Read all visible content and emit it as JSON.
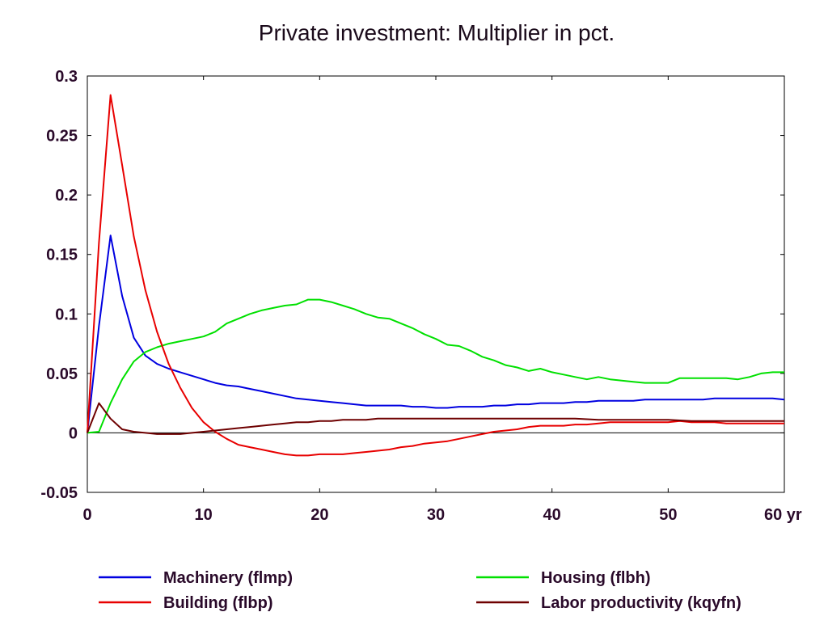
{
  "chart_data": {
    "type": "line",
    "title": "Private investment: Multiplier in pct.",
    "xlabel": "",
    "ylabel": "",
    "x_unit": "yr",
    "xlim": [
      0,
      60
    ],
    "ylim": [
      -0.05,
      0.3
    ],
    "x_ticks": [
      0,
      10,
      20,
      30,
      40,
      50,
      60
    ],
    "x_tick_labels": [
      "0",
      "10",
      "20",
      "30",
      "40",
      "50",
      "60 yr"
    ],
    "y_ticks": [
      -0.05,
      0,
      0.05,
      0.1,
      0.15,
      0.2,
      0.25,
      0.3
    ],
    "y_tick_labels": [
      "-0.05",
      "0",
      "0.05",
      "0.1",
      "0.15",
      "0.2",
      "0.25",
      "0.3"
    ],
    "grid": false,
    "zero_line": true,
    "legend_position": "bottom",
    "series": [
      {
        "name": "Machinery (flmp)",
        "color": "#0000e0",
        "points": [
          [
            0,
            0
          ],
          [
            1,
            0.09
          ],
          [
            2,
            0.166
          ],
          [
            3,
            0.115
          ],
          [
            4,
            0.08
          ],
          [
            5,
            0.065
          ],
          [
            6,
            0.058
          ],
          [
            7,
            0.054
          ],
          [
            8,
            0.051
          ],
          [
            9,
            0.048
          ],
          [
            10,
            0.045
          ],
          [
            11,
            0.042
          ],
          [
            12,
            0.04
          ],
          [
            13,
            0.039
          ],
          [
            14,
            0.037
          ],
          [
            15,
            0.035
          ],
          [
            16,
            0.033
          ],
          [
            17,
            0.031
          ],
          [
            18,
            0.029
          ],
          [
            19,
            0.028
          ],
          [
            20,
            0.027
          ],
          [
            21,
            0.026
          ],
          [
            22,
            0.025
          ],
          [
            23,
            0.024
          ],
          [
            24,
            0.023
          ],
          [
            25,
            0.023
          ],
          [
            26,
            0.023
          ],
          [
            27,
            0.023
          ],
          [
            28,
            0.022
          ],
          [
            29,
            0.022
          ],
          [
            30,
            0.021
          ],
          [
            31,
            0.021
          ],
          [
            32,
            0.022
          ],
          [
            33,
            0.022
          ],
          [
            34,
            0.022
          ],
          [
            35,
            0.023
          ],
          [
            36,
            0.023
          ],
          [
            37,
            0.024
          ],
          [
            38,
            0.024
          ],
          [
            39,
            0.025
          ],
          [
            40,
            0.025
          ],
          [
            41,
            0.025
          ],
          [
            42,
            0.026
          ],
          [
            43,
            0.026
          ],
          [
            44,
            0.027
          ],
          [
            45,
            0.027
          ],
          [
            46,
            0.027
          ],
          [
            47,
            0.027
          ],
          [
            48,
            0.028
          ],
          [
            49,
            0.028
          ],
          [
            50,
            0.028
          ],
          [
            51,
            0.028
          ],
          [
            52,
            0.028
          ],
          [
            53,
            0.028
          ],
          [
            54,
            0.029
          ],
          [
            55,
            0.029
          ],
          [
            56,
            0.029
          ],
          [
            57,
            0.029
          ],
          [
            58,
            0.029
          ],
          [
            59,
            0.029
          ],
          [
            60,
            0.028
          ]
        ]
      },
      {
        "name": "Housing (flbh)",
        "color": "#00e000",
        "points": [
          [
            0,
            0
          ],
          [
            1,
            0.001
          ],
          [
            2,
            0.025
          ],
          [
            3,
            0.045
          ],
          [
            4,
            0.06
          ],
          [
            5,
            0.068
          ],
          [
            6,
            0.072
          ],
          [
            7,
            0.075
          ],
          [
            8,
            0.077
          ],
          [
            9,
            0.079
          ],
          [
            10,
            0.081
          ],
          [
            11,
            0.085
          ],
          [
            12,
            0.092
          ],
          [
            13,
            0.096
          ],
          [
            14,
            0.1
          ],
          [
            15,
            0.103
          ],
          [
            16,
            0.105
          ],
          [
            17,
            0.107
          ],
          [
            18,
            0.108
          ],
          [
            19,
            0.112
          ],
          [
            20,
            0.112
          ],
          [
            21,
            0.11
          ],
          [
            22,
            0.107
          ],
          [
            23,
            0.104
          ],
          [
            24,
            0.1
          ],
          [
            25,
            0.097
          ],
          [
            26,
            0.096
          ],
          [
            27,
            0.092
          ],
          [
            28,
            0.088
          ],
          [
            29,
            0.083
          ],
          [
            30,
            0.079
          ],
          [
            31,
            0.074
          ],
          [
            32,
            0.073
          ],
          [
            33,
            0.069
          ],
          [
            34,
            0.064
          ],
          [
            35,
            0.061
          ],
          [
            36,
            0.057
          ],
          [
            37,
            0.055
          ],
          [
            38,
            0.052
          ],
          [
            39,
            0.054
          ],
          [
            40,
            0.051
          ],
          [
            41,
            0.049
          ],
          [
            42,
            0.047
          ],
          [
            43,
            0.045
          ],
          [
            44,
            0.047
          ],
          [
            45,
            0.045
          ],
          [
            46,
            0.044
          ],
          [
            47,
            0.043
          ],
          [
            48,
            0.042
          ],
          [
            49,
            0.042
          ],
          [
            50,
            0.042
          ],
          [
            51,
            0.046
          ],
          [
            52,
            0.046
          ],
          [
            53,
            0.046
          ],
          [
            54,
            0.046
          ],
          [
            55,
            0.046
          ],
          [
            56,
            0.045
          ],
          [
            57,
            0.047
          ],
          [
            58,
            0.05
          ],
          [
            59,
            0.051
          ],
          [
            60,
            0.051
          ]
        ]
      },
      {
        "name": "Building (flbp)",
        "color": "#e80000",
        "points": [
          [
            0,
            0
          ],
          [
            1,
            0.16
          ],
          [
            2,
            0.284
          ],
          [
            3,
            0.225
          ],
          [
            4,
            0.165
          ],
          [
            5,
            0.12
          ],
          [
            6,
            0.085
          ],
          [
            7,
            0.058
          ],
          [
            8,
            0.038
          ],
          [
            9,
            0.021
          ],
          [
            10,
            0.009
          ],
          [
            11,
            0.001
          ],
          [
            12,
            -0.005
          ],
          [
            13,
            -0.01
          ],
          [
            14,
            -0.012
          ],
          [
            15,
            -0.014
          ],
          [
            16,
            -0.016
          ],
          [
            17,
            -0.018
          ],
          [
            18,
            -0.019
          ],
          [
            19,
            -0.019
          ],
          [
            20,
            -0.018
          ],
          [
            21,
            -0.018
          ],
          [
            22,
            -0.018
          ],
          [
            23,
            -0.017
          ],
          [
            24,
            -0.016
          ],
          [
            25,
            -0.015
          ],
          [
            26,
            -0.014
          ],
          [
            27,
            -0.012
          ],
          [
            28,
            -0.011
          ],
          [
            29,
            -0.009
          ],
          [
            30,
            -0.008
          ],
          [
            31,
            -0.007
          ],
          [
            32,
            -0.005
          ],
          [
            33,
            -0.003
          ],
          [
            34,
            -0.001
          ],
          [
            35,
            0.001
          ],
          [
            36,
            0.002
          ],
          [
            37,
            0.003
          ],
          [
            38,
            0.005
          ],
          [
            39,
            0.006
          ],
          [
            40,
            0.006
          ],
          [
            41,
            0.006
          ],
          [
            42,
            0.007
          ],
          [
            43,
            0.007
          ],
          [
            44,
            0.008
          ],
          [
            45,
            0.009
          ],
          [
            46,
            0.009
          ],
          [
            47,
            0.009
          ],
          [
            48,
            0.009
          ],
          [
            49,
            0.009
          ],
          [
            50,
            0.009
          ],
          [
            51,
            0.01
          ],
          [
            52,
            0.009
          ],
          [
            53,
            0.009
          ],
          [
            54,
            0.009
          ],
          [
            55,
            0.008
          ],
          [
            56,
            0.008
          ],
          [
            57,
            0.008
          ],
          [
            58,
            0.008
          ],
          [
            59,
            0.008
          ],
          [
            60,
            0.008
          ]
        ]
      },
      {
        "name": "Labor productivity (kqyfn)",
        "color": "#6e0000",
        "points": [
          [
            0,
            0
          ],
          [
            1,
            0.025
          ],
          [
            2,
            0.012
          ],
          [
            3,
            0.003
          ],
          [
            4,
            0.001
          ],
          [
            5,
            0
          ],
          [
            6,
            -0.001
          ],
          [
            7,
            -0.001
          ],
          [
            8,
            -0.001
          ],
          [
            9,
            0
          ],
          [
            10,
            0.001
          ],
          [
            11,
            0.002
          ],
          [
            12,
            0.003
          ],
          [
            13,
            0.004
          ],
          [
            14,
            0.005
          ],
          [
            15,
            0.006
          ],
          [
            16,
            0.007
          ],
          [
            17,
            0.008
          ],
          [
            18,
            0.009
          ],
          [
            19,
            0.009
          ],
          [
            20,
            0.01
          ],
          [
            21,
            0.01
          ],
          [
            22,
            0.011
          ],
          [
            23,
            0.011
          ],
          [
            24,
            0.011
          ],
          [
            25,
            0.012
          ],
          [
            26,
            0.012
          ],
          [
            27,
            0.012
          ],
          [
            28,
            0.012
          ],
          [
            29,
            0.012
          ],
          [
            30,
            0.012
          ],
          [
            32,
            0.012
          ],
          [
            34,
            0.012
          ],
          [
            36,
            0.012
          ],
          [
            38,
            0.012
          ],
          [
            40,
            0.012
          ],
          [
            42,
            0.012
          ],
          [
            44,
            0.011
          ],
          [
            46,
            0.011
          ],
          [
            48,
            0.011
          ],
          [
            50,
            0.011
          ],
          [
            52,
            0.01
          ],
          [
            54,
            0.01
          ],
          [
            56,
            0.01
          ],
          [
            58,
            0.01
          ],
          [
            60,
            0.01
          ]
        ]
      }
    ]
  }
}
